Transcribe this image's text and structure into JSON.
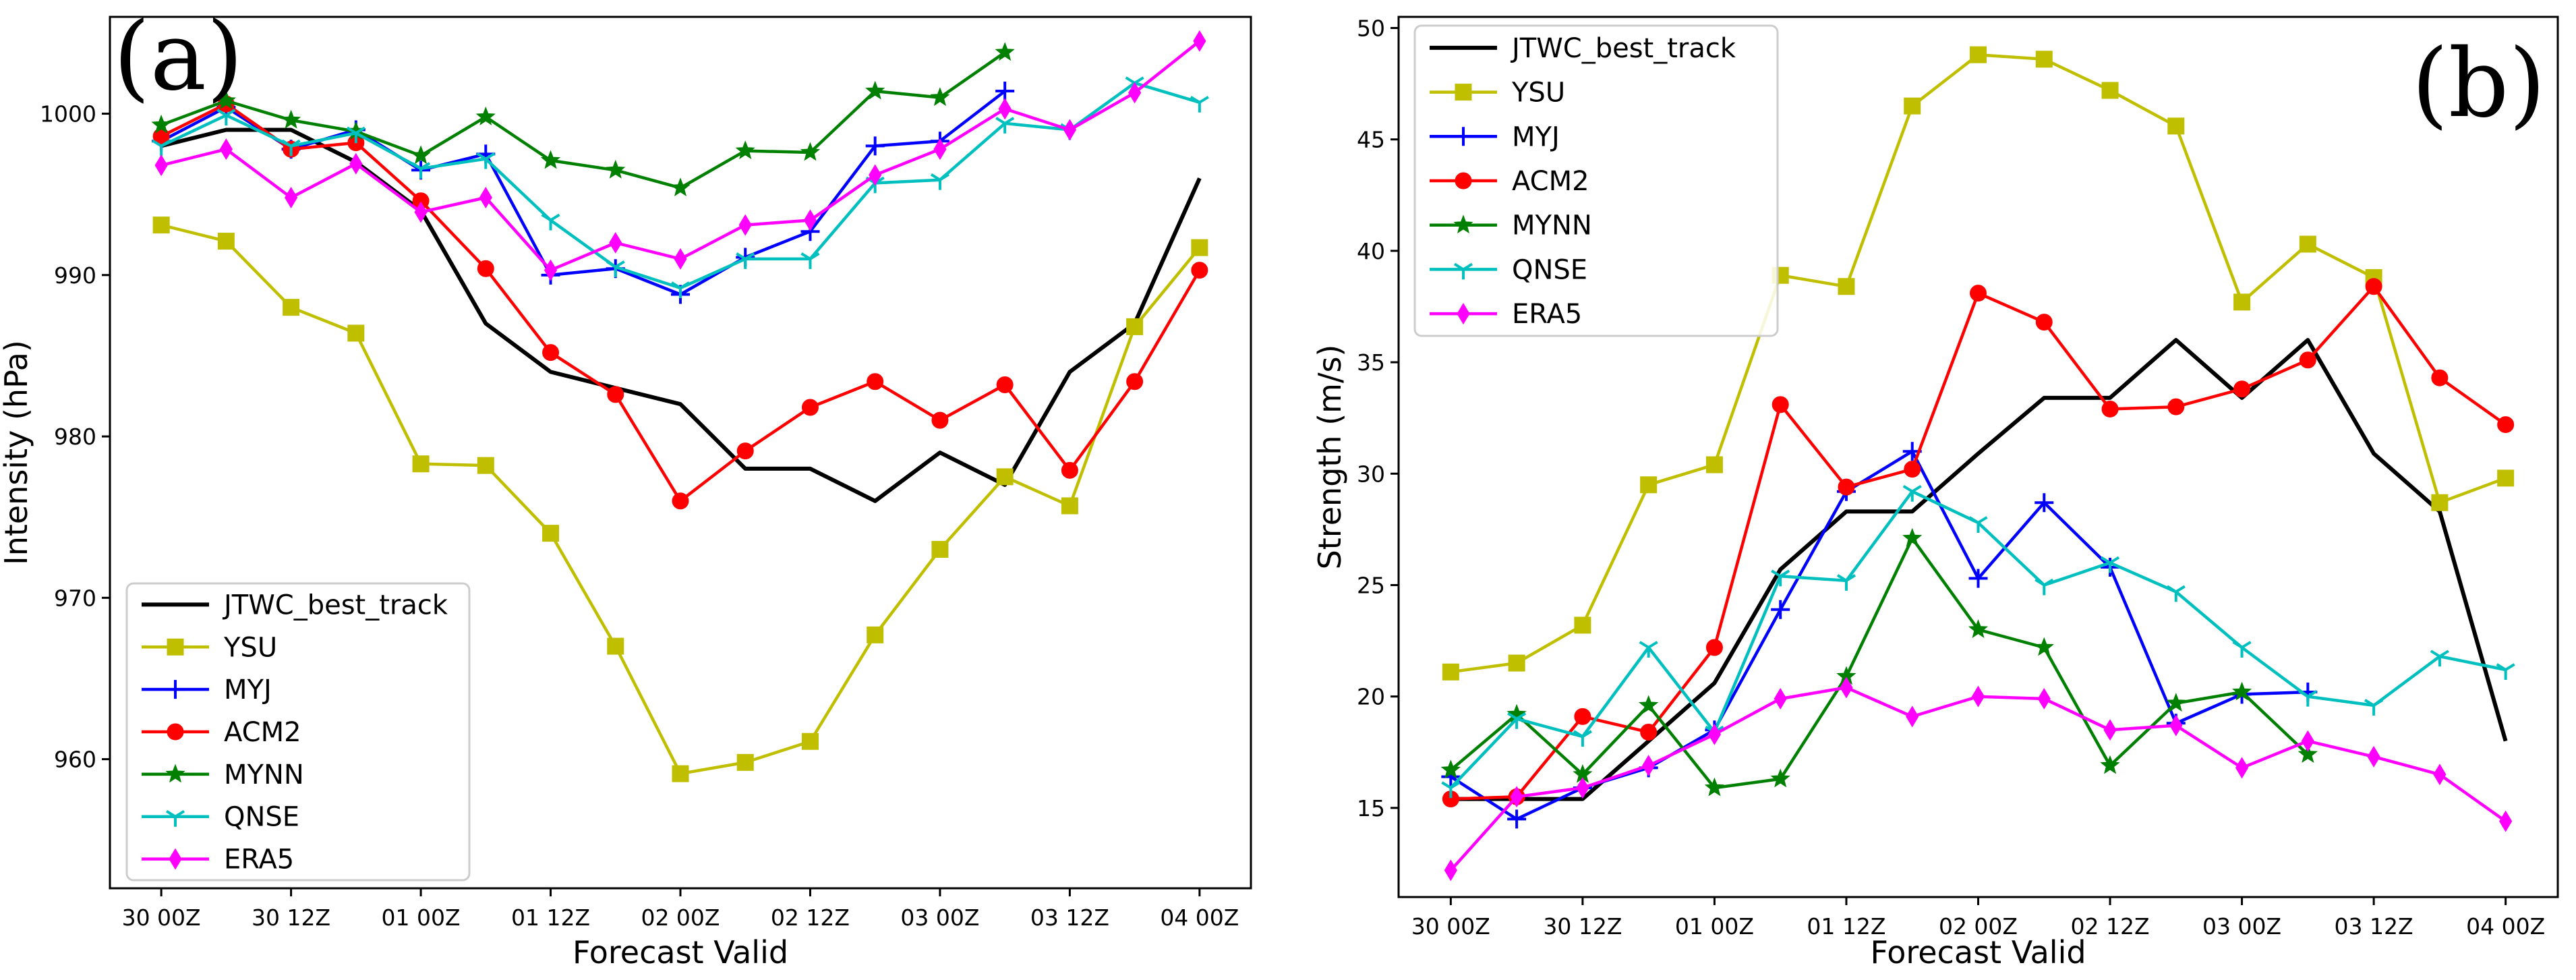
{
  "chart_data": [
    {
      "type": "line",
      "panel_label": "(a)",
      "xlabel": "Forecast Valid",
      "ylabel": "Intensity (hPa)",
      "ylim": [
        952,
        1006
      ],
      "yticks": [
        960,
        970,
        980,
        990,
        1000
      ],
      "x_tick_labels": [
        "30 00Z",
        "30 12Z",
        "01 00Z",
        "01 12Z",
        "02 00Z",
        "02 12Z",
        "03 00Z",
        "03 12Z",
        "04 00Z"
      ],
      "legend_position": "lower-left",
      "series": [
        {
          "name": "JTWC_best_track",
          "color": "#000000",
          "marker": "none",
          "values": [
            998,
            999,
            999,
            997,
            994,
            987,
            984,
            983,
            982,
            978,
            978,
            976,
            979,
            977,
            984,
            987,
            996
          ]
        },
        {
          "name": "YSU",
          "color": "#bfbf00",
          "marker": "square",
          "values": [
            993.1,
            992.1,
            988.0,
            986.4,
            978.3,
            978.2,
            974.0,
            967.0,
            959.1,
            959.8,
            961.1,
            967.7,
            973.0,
            977.5,
            975.7,
            986.8,
            991.7
          ]
        },
        {
          "name": "MYJ",
          "color": "#0000ff",
          "marker": "plus",
          "values": [
            998.3,
            1000.4,
            997.8,
            999.0,
            996.5,
            997.5,
            990.0,
            990.4,
            988.8,
            991.1,
            992.7,
            998.0,
            998.3,
            1001.4,
            null,
            null,
            null
          ]
        },
        {
          "name": "ACM2",
          "color": "#ff0000",
          "marker": "circle",
          "values": [
            998.6,
            1000.6,
            997.8,
            998.2,
            994.6,
            990.4,
            985.2,
            982.6,
            976.0,
            979.1,
            981.8,
            983.4,
            981.0,
            983.2,
            977.9,
            983.4,
            990.3
          ]
        },
        {
          "name": "MYNN",
          "color": "#008000",
          "marker": "star",
          "values": [
            999.3,
            1000.8,
            999.6,
            998.9,
            997.4,
            999.8,
            997.1,
            996.5,
            995.4,
            997.7,
            997.6,
            1001.4,
            1001.0,
            1003.8,
            null,
            null,
            null
          ]
        },
        {
          "name": "QNSE",
          "color": "#00bfbf",
          "marker": "tri",
          "values": [
            998.0,
            999.9,
            998.0,
            998.8,
            996.6,
            997.2,
            993.4,
            990.5,
            989.2,
            991.0,
            991.0,
            995.7,
            995.9,
            999.4,
            999.0,
            1001.9,
            1000.7
          ]
        },
        {
          "name": "ERA5",
          "color": "#ff00ff",
          "marker": "thin_diamond",
          "values": [
            996.8,
            997.8,
            994.8,
            996.9,
            993.9,
            994.8,
            990.3,
            992.0,
            991.0,
            993.1,
            993.4,
            996.2,
            997.8,
            1000.3,
            999.0,
            1001.3,
            1004.5
          ]
        }
      ]
    },
    {
      "type": "line",
      "panel_label": "(b)",
      "xlabel": "Forecast Valid",
      "ylabel": "Strength (m/s)",
      "ylim": [
        11,
        50.5
      ],
      "yticks": [
        15,
        20,
        25,
        30,
        35,
        40,
        45,
        50
      ],
      "x_tick_labels": [
        "30 00Z",
        "30 12Z",
        "01 00Z",
        "01 12Z",
        "02 00Z",
        "02 12Z",
        "03 00Z",
        "03 12Z",
        "04 00Z"
      ],
      "legend_position": "upper-left",
      "series": [
        {
          "name": "JTWC_best_track",
          "color": "#000000",
          "marker": "none",
          "values": [
            15.4,
            15.4,
            15.4,
            18.0,
            20.6,
            25.7,
            28.3,
            28.3,
            30.9,
            33.4,
            33.4,
            36.0,
            33.4,
            36.0,
            30.9,
            28.3,
            18.0
          ]
        },
        {
          "name": "YSU",
          "color": "#bfbf00",
          "marker": "square",
          "values": [
            21.1,
            21.5,
            23.2,
            29.5,
            30.4,
            38.9,
            38.4,
            46.5,
            48.8,
            48.6,
            47.2,
            45.6,
            37.7,
            40.3,
            38.8,
            28.7,
            29.8
          ]
        },
        {
          "name": "MYJ",
          "color": "#0000ff",
          "marker": "plus",
          "values": [
            16.4,
            14.5,
            15.9,
            16.8,
            18.5,
            23.9,
            29.2,
            31.0,
            25.3,
            28.7,
            25.8,
            18.8,
            20.1,
            20.2,
            null,
            null,
            null
          ]
        },
        {
          "name": "ACM2",
          "color": "#ff0000",
          "marker": "circle",
          "values": [
            15.4,
            15.5,
            19.1,
            18.4,
            22.2,
            33.1,
            29.4,
            30.2,
            38.1,
            36.8,
            32.9,
            33.0,
            33.8,
            35.1,
            38.4,
            34.3,
            32.2
          ]
        },
        {
          "name": "MYNN",
          "color": "#008000",
          "marker": "star",
          "values": [
            16.7,
            19.2,
            16.5,
            19.6,
            15.9,
            16.3,
            20.9,
            27.1,
            23.0,
            22.2,
            16.9,
            19.7,
            20.2,
            17.4,
            null,
            null,
            null
          ]
        },
        {
          "name": "QNSE",
          "color": "#00bfbf",
          "marker": "tri",
          "values": [
            15.9,
            19.0,
            18.2,
            22.2,
            18.4,
            25.4,
            25.2,
            29.2,
            27.8,
            25.0,
            26.0,
            24.7,
            22.2,
            20.0,
            19.6,
            21.8,
            21.2
          ]
        },
        {
          "name": "ERA5",
          "color": "#ff00ff",
          "marker": "thin_diamond",
          "values": [
            12.2,
            15.5,
            15.9,
            16.9,
            18.3,
            19.9,
            20.4,
            19.1,
            20.0,
            19.9,
            18.5,
            18.7,
            16.8,
            18.0,
            17.3,
            16.5,
            14.4
          ]
        }
      ]
    }
  ]
}
